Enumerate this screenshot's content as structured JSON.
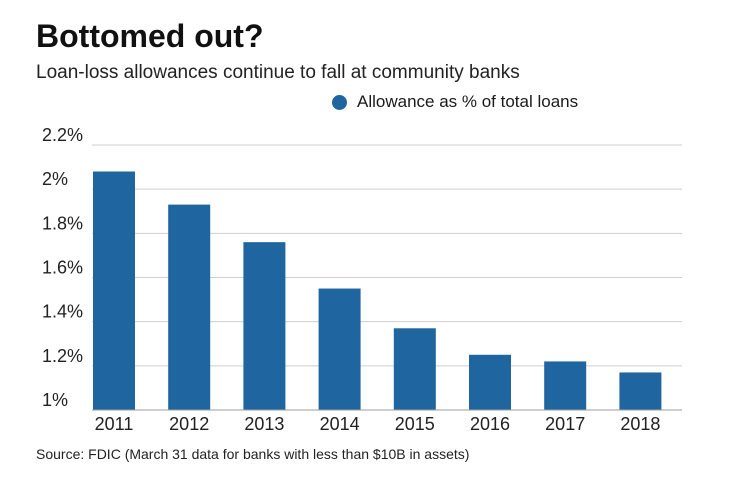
{
  "chart_data": {
    "type": "bar",
    "title": "Bottomed out?",
    "subtitle": "Loan-loss allowances continue to fall at community banks",
    "source": "Source: FDIC (March 31 data for banks with less than $10B in assets)",
    "categories": [
      "2011",
      "2012",
      "2013",
      "2014",
      "2015",
      "2016",
      "2017",
      "2018"
    ],
    "series": [
      {
        "name": "Allowance as % of total loans",
        "color": "#1f65a0",
        "values": [
          2.08,
          1.93,
          1.76,
          1.55,
          1.37,
          1.25,
          1.22,
          1.17
        ]
      }
    ],
    "y_ticks": [
      "1%",
      "1.2%",
      "1.4%",
      "1.6%",
      "1.8%",
      "2%",
      "2.2%"
    ],
    "y_tick_values": [
      1.0,
      1.2,
      1.4,
      1.6,
      1.8,
      2.0,
      2.2
    ],
    "ylim": [
      1.0,
      2.2
    ],
    "grid": true,
    "legend_position": "top-right"
  }
}
